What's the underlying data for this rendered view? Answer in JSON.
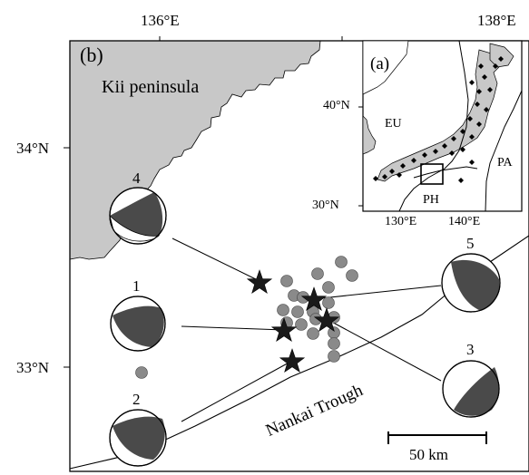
{
  "longitude_ticks": [
    "136°E",
    "138°E"
  ],
  "latitude_ticks": [
    "34°N",
    "33°N"
  ],
  "panel_main_label": "(b)",
  "region_label": "Kii peninsula",
  "trough_label": "Nankai Trough",
  "scale_bar_label": "50 km",
  "inset": {
    "panel_label": "(a)",
    "lat_ticks": [
      "40°N",
      "30°N"
    ],
    "lon_ticks": [
      "130°E",
      "140°E"
    ],
    "plates": [
      "EU",
      "PA",
      "PH"
    ]
  },
  "mechanisms": [
    {
      "number": "4"
    },
    {
      "number": "1"
    },
    {
      "number": "2"
    },
    {
      "number": "5"
    },
    {
      "number": "3"
    }
  ],
  "colors": {
    "land": "#c8c8c8",
    "compression_quadrant": "#4a4a4a",
    "event_dots": "#8a8a8a",
    "star": "#1a1a1a"
  }
}
